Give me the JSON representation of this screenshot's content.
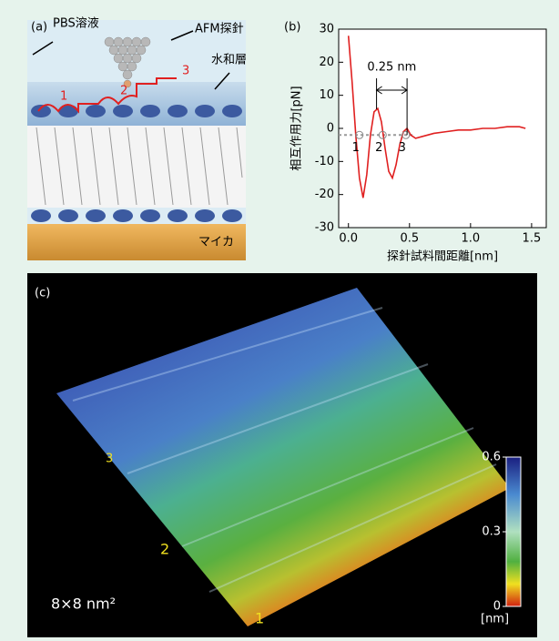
{
  "panel_a": {
    "label": "(a)",
    "medium": "PBS溶液",
    "probe": "AFM探針",
    "hydration": "水和層",
    "substrate": "マイカ",
    "steps": [
      "1",
      "2",
      "3"
    ]
  },
  "chart_data": {
    "type": "line",
    "panel_label": "(b)",
    "xlabel": "探針試料間距離[nm]",
    "ylabel": "相互作用力[pN]",
    "x": [
      0.0,
      0.03,
      0.06,
      0.09,
      0.12,
      0.15,
      0.18,
      0.21,
      0.24,
      0.27,
      0.3,
      0.33,
      0.36,
      0.39,
      0.42,
      0.45,
      0.48,
      0.51,
      0.55,
      0.6,
      0.7,
      0.8,
      0.9,
      1.0,
      1.1,
      1.2,
      1.3,
      1.4,
      1.45
    ],
    "values": [
      28,
      14,
      -2,
      -15,
      -21,
      -14,
      -2,
      5,
      6,
      2,
      -6,
      -13,
      -15,
      -11,
      -5,
      -1,
      0,
      -2,
      -3,
      -2.5,
      -1.5,
      -1,
      -0.5,
      -0.5,
      0,
      0,
      0.5,
      0.5,
      0
    ],
    "color": "#e02020",
    "xlim": [
      -0.08,
      1.62
    ],
    "ylim": [
      -30,
      30
    ],
    "xticks": [
      {
        "value": 0,
        "label": "0.0"
      },
      0.5,
      {
        "value": 1,
        "label": "1.0"
      },
      1.5
    ],
    "yticks": [
      -30,
      -20,
      -10,
      0,
      10,
      20,
      30
    ],
    "baseline": -2,
    "markers": [
      {
        "x": 0.09,
        "label": "1"
      },
      {
        "x": 0.28,
        "label": "2"
      },
      {
        "x": 0.47,
        "label": "3"
      }
    ],
    "spacing": {
      "from": 0.23,
      "to": 0.48,
      "label": "0.25 nm"
    }
  },
  "panel_c": {
    "label": "(c)",
    "rows": [
      "3",
      "2",
      "1"
    ],
    "size": "8×8 nm²",
    "colorbar": {
      "lim": [
        0,
        0.6
      ],
      "ticks": [
        0.6,
        0.3,
        0
      ],
      "unit": "[nm]"
    }
  }
}
